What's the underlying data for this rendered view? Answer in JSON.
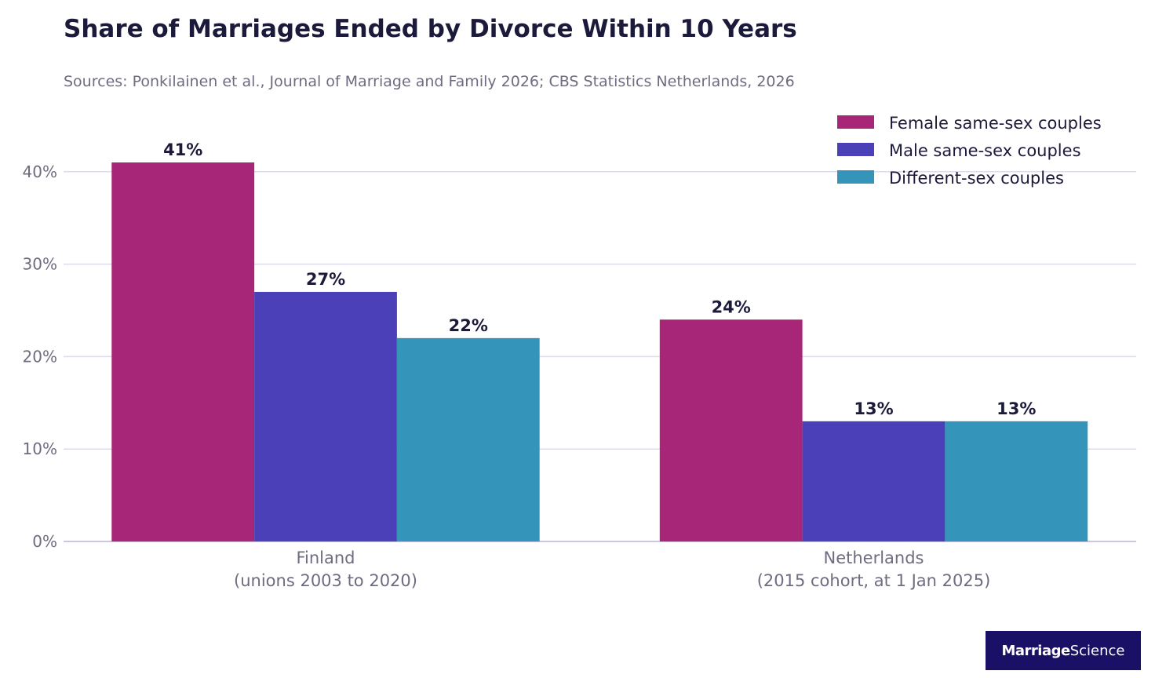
{
  "title": "Share of Marriages Ended by Divorce Within 10 Years",
  "subtitle": "Sources: Ponkilainen et al., Journal of Marriage and Family 2026; CBS Statistics Netherlands, 2026",
  "logo": {
    "part1": "Marriage",
    "part2": "Science",
    "background": "#1a1066"
  },
  "chart_data": {
    "type": "bar",
    "categories": [
      [
        "Finland",
        "(unions 2003 to 2020)"
      ],
      [
        "Netherlands",
        "(2015 cohort, at 1 Jan 2025)"
      ]
    ],
    "series": [
      {
        "name": "Female same-sex couples",
        "color": "#a82677",
        "values": [
          41,
          24
        ],
        "labels": [
          "41%",
          "24%"
        ]
      },
      {
        "name": "Male same-sex couples",
        "color": "#4b40b8",
        "values": [
          27,
          13
        ],
        "labels": [
          "27%",
          "13%"
        ]
      },
      {
        "name": "Different-sex couples",
        "color": "#3494ba",
        "values": [
          22,
          13
        ],
        "labels": [
          "22%",
          "13%"
        ]
      }
    ],
    "ylim": [
      0,
      40
    ],
    "yticks": [
      0,
      10,
      20,
      30,
      40
    ],
    "ytick_labels": [
      "0%",
      "10%",
      "20%",
      "30%",
      "40%"
    ],
    "grid": true,
    "legend_position": "top-right"
  }
}
